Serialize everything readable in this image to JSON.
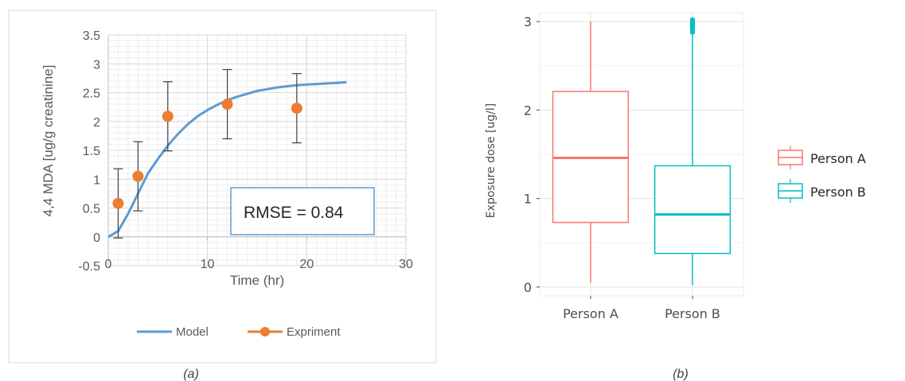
{
  "chart_data": [
    {
      "type": "line",
      "caption": "(a)",
      "xlabel": "Time (hr)",
      "ylabel": "4,4 MDA [ug/g creatinine]",
      "xlim": [
        0,
        30
      ],
      "ylim": [
        -0.5,
        3.5
      ],
      "x_ticks": [
        0,
        10,
        20,
        30
      ],
      "y_ticks": [
        -0.5,
        0,
        0.5,
        1,
        1.5,
        2,
        2.5,
        3,
        3.5
      ],
      "grid": true,
      "legend_position": "bottom",
      "annotation": "RMSE = 0.84",
      "series": [
        {
          "name": "Model",
          "kind": "line",
          "color": "#5b9bd5",
          "x": [
            0,
            1,
            2,
            3,
            4,
            5,
            6,
            7,
            8,
            9,
            10,
            11,
            12,
            13,
            14,
            15,
            16,
            17,
            18,
            19,
            20,
            21,
            22,
            23,
            24
          ],
          "y": [
            0,
            0.1,
            0.4,
            0.75,
            1.1,
            1.35,
            1.58,
            1.78,
            1.95,
            2.09,
            2.2,
            2.29,
            2.37,
            2.43,
            2.48,
            2.53,
            2.56,
            2.59,
            2.61,
            2.63,
            2.64,
            2.65,
            2.66,
            2.67,
            2.68
          ]
        },
        {
          "name": "Expriment",
          "kind": "scatter",
          "color": "#ed7d31",
          "x": [
            1,
            3,
            6,
            12,
            19
          ],
          "y": [
            0.58,
            1.05,
            2.09,
            2.3,
            2.23
          ],
          "err": [
            0.6,
            0.6,
            0.6,
            0.6,
            0.6
          ]
        }
      ]
    },
    {
      "type": "box",
      "caption": "(b)",
      "xlabel": "",
      "ylabel": "Exposure dose [ug/l]",
      "ylim": [
        -0.1,
        3.1
      ],
      "y_ticks": [
        0,
        1,
        2,
        3
      ],
      "categories": [
        "Person A",
        "Person B"
      ],
      "grid": true,
      "legend_position": "right",
      "series": [
        {
          "name": "Person A",
          "color": "#f8766d",
          "min": 0.05,
          "q1": 0.73,
          "median": 1.46,
          "q3": 2.21,
          "max": 3.0,
          "outliers": []
        },
        {
          "name": "Person B",
          "color": "#00bfc4",
          "min": 0.02,
          "q1": 0.38,
          "median": 0.82,
          "q3": 1.37,
          "max": 2.85,
          "outliers": [
            2.88,
            2.91,
            2.94,
            2.96,
            2.98,
            3.0,
            3.02
          ]
        }
      ]
    }
  ]
}
